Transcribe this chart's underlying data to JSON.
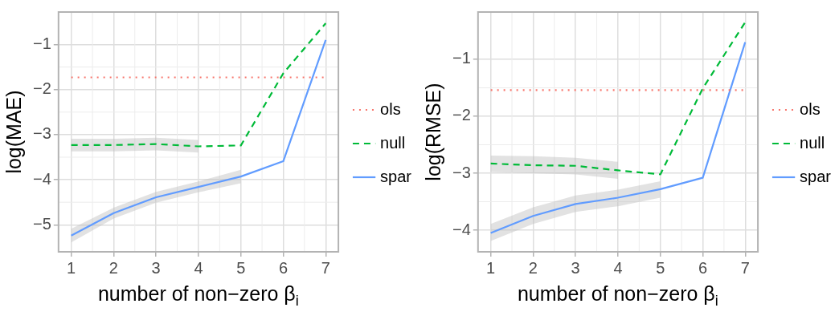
{
  "chart_data": [
    {
      "type": "line",
      "xlabel": "number of non−zero β$_{i}$",
      "ylabel": "log(MAE)",
      "x": [
        1,
        2,
        3,
        4,
        5,
        6,
        7
      ],
      "xlim": [
        0.7,
        7.3
      ],
      "xticks": [
        1,
        2,
        3,
        4,
        5,
        6,
        7
      ],
      "ylim": [
        -5.6,
        -0.28
      ],
      "yticks": [
        -5,
        -4,
        -3,
        -2,
        -1
      ],
      "grid": true,
      "legend": "right",
      "series": [
        {
          "name": "ols",
          "color": "#f8766d",
          "line_style": "dotted",
          "values": [
            -1.73,
            -1.73,
            -1.73,
            -1.73,
            -1.73,
            -1.73,
            -1.73
          ]
        },
        {
          "name": "null",
          "color": "#00ba38",
          "line_style": "dashed",
          "values": [
            -3.23,
            -3.23,
            -3.21,
            -3.26,
            -3.24,
            -1.64,
            -0.53
          ],
          "lower": [
            -3.37,
            -3.37,
            -3.35,
            -3.4,
            null,
            null,
            null
          ],
          "upper": [
            -3.09,
            -3.09,
            -3.07,
            -3.12,
            null,
            null,
            null
          ]
        },
        {
          "name": "spar",
          "color": "#619cff",
          "line_style": "solid",
          "values": [
            -5.24,
            -4.74,
            -4.39,
            -4.16,
            -3.93,
            -3.59,
            -0.9
          ],
          "lower": [
            -5.39,
            -4.86,
            -4.51,
            -4.28,
            -4.08,
            null,
            null
          ],
          "upper": [
            -5.09,
            -4.62,
            -4.27,
            -4.04,
            -3.78,
            null,
            null
          ]
        }
      ]
    },
    {
      "type": "line",
      "xlabel": "number of non−zero β$_{i}$",
      "ylabel": "log(RMSE)",
      "x": [
        1,
        2,
        3,
        4,
        5,
        6,
        7
      ],
      "xlim": [
        0.7,
        7.3
      ],
      "xticks": [
        1,
        2,
        3,
        4,
        5,
        6,
        7
      ],
      "ylim": [
        -4.38,
        -0.17
      ],
      "yticks": [
        -4,
        -3,
        -2,
        -1
      ],
      "grid": true,
      "legend": "right",
      "series": [
        {
          "name": "ols",
          "color": "#f8766d",
          "line_style": "dotted",
          "values": [
            -1.54,
            -1.54,
            -1.54,
            -1.54,
            -1.54,
            -1.54,
            -1.54
          ]
        },
        {
          "name": "null",
          "color": "#00ba38",
          "line_style": "dashed",
          "values": [
            -2.83,
            -2.86,
            -2.87,
            -2.95,
            -3.02,
            -1.51,
            -0.35
          ],
          "lower": [
            -2.98,
            -3.0,
            -3.02,
            -3.1,
            null,
            null,
            null
          ],
          "upper": [
            -2.69,
            -2.7,
            -2.73,
            -2.8,
            null,
            null,
            null
          ]
        },
        {
          "name": "spar",
          "color": "#619cff",
          "line_style": "solid",
          "values": [
            -4.05,
            -3.75,
            -3.54,
            -3.43,
            -3.28,
            -3.08,
            -0.7
          ],
          "lower": [
            -4.19,
            -3.89,
            -3.68,
            -3.58,
            -3.43,
            null,
            null
          ],
          "upper": [
            -3.89,
            -3.6,
            -3.39,
            -3.29,
            -3.14,
            null,
            null
          ]
        }
      ]
    }
  ]
}
